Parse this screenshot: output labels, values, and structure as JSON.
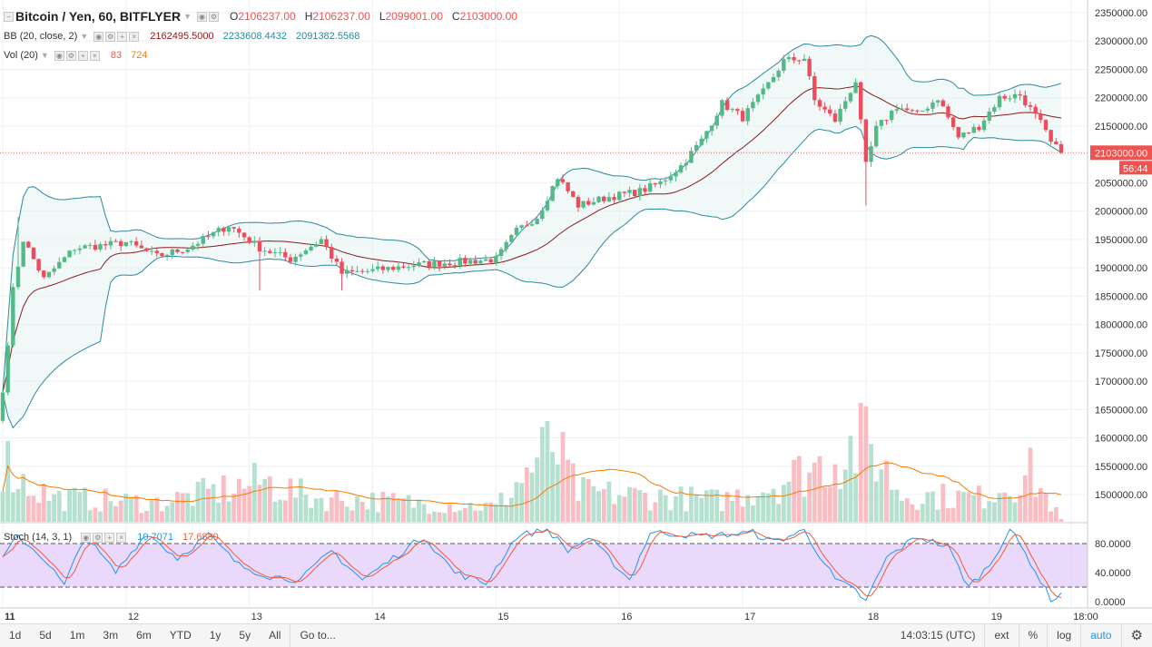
{
  "legend": {
    "symbol": "Bitcoin / Yen, 60, BITFLYER",
    "o_label": "O",
    "o_value": "2106237.00",
    "h_label": "H",
    "h_value": "2106237.00",
    "l_label": "L",
    "l_value": "2099001.00",
    "c_label": "C",
    "c_value": "2103000.00",
    "bb_label": "BB (20, close, 2)",
    "bb_basis": "2162495.5000",
    "bb_upper": "2233608.4432",
    "bb_lower": "2091382.5568",
    "vol_label": "Vol (20)",
    "vol_value": "83",
    "vol_ma": "724",
    "stoch_label": "Stoch (14, 3, 1)",
    "stoch_k": "10.7071",
    "stoch_d": "17.6880"
  },
  "toolbar": {
    "ranges": [
      "1d",
      "5d",
      "1m",
      "3m",
      "6m",
      "YTD",
      "1y",
      "5y",
      "All"
    ],
    "goto": "Go to...",
    "time": "14:03:15 (UTC)",
    "ext": "ext",
    "pct": "%",
    "log": "log",
    "auto": "auto"
  },
  "colors": {
    "up": "#26a69a",
    "down": "#ef5350",
    "bb_band": "#2b8a9e",
    "bb_basis": "#8b1a1a",
    "stoch_k": "#2196f3",
    "stoch_d": "#ef5b3a",
    "vol_ma": "#f57c00",
    "stoch_bg": "#e5d0fa"
  },
  "chart_data": {
    "type": "candlestick",
    "title": "Bitcoin / Yen, 60, BITFLYER",
    "price_axis": {
      "ticks": [
        2350000,
        2300000,
        2250000,
        2200000,
        2150000,
        2100000,
        2050000,
        2000000,
        1950000,
        1900000,
        1850000,
        1800000,
        1750000,
        1700000,
        1650000,
        1600000,
        1550000,
        1500000
      ],
      "labels": [
        "2350000.00",
        "2300000.00",
        "2250000.00",
        "2200000.00",
        "2150000.00",
        "2100000.00",
        "2050000.00",
        "2000000.00",
        "1950000.00",
        "1900000.00",
        "1850000.00",
        "1800000.00",
        "1750000.00",
        "1700000.00",
        "1650000.00",
        "1600000.00",
        "1550000.00",
        "1500000.00"
      ],
      "last_price": 2103000,
      "last_label": "2103000.00",
      "countdown": "56:44"
    },
    "stoch_axis": {
      "ticks": [
        80,
        40,
        0
      ],
      "labels": [
        "80.0000",
        "40.0000",
        "0.0000"
      ],
      "bands": [
        20,
        80
      ]
    },
    "time_axis": {
      "labels": [
        "11",
        "12",
        "13",
        "14",
        "15",
        "16",
        "17",
        "18",
        "19",
        "18:00"
      ],
      "positions_h": [
        0,
        24,
        48,
        72,
        96,
        120,
        144,
        168,
        192,
        208
      ]
    },
    "close_anchors": [
      [
        0,
        1680000
      ],
      [
        2,
        1860000
      ],
      [
        4,
        1950000
      ],
      [
        8,
        1880000
      ],
      [
        14,
        1935000
      ],
      [
        20,
        1940000
      ],
      [
        24,
        1945000
      ],
      [
        30,
        1920000
      ],
      [
        36,
        1935000
      ],
      [
        44,
        1975000
      ],
      [
        50,
        1935000
      ],
      [
        56,
        1915000
      ],
      [
        62,
        1950000
      ],
      [
        66,
        1890000
      ],
      [
        72,
        1895000
      ],
      [
        80,
        1905000
      ],
      [
        88,
        1910000
      ],
      [
        96,
        1915000
      ],
      [
        100,
        1965000
      ],
      [
        104,
        1990000
      ],
      [
        108,
        2060000
      ],
      [
        112,
        2010000
      ],
      [
        118,
        2025000
      ],
      [
        124,
        2035000
      ],
      [
        128,
        2050000
      ],
      [
        132,
        2080000
      ],
      [
        136,
        2125000
      ],
      [
        140,
        2190000
      ],
      [
        144,
        2165000
      ],
      [
        148,
        2210000
      ],
      [
        152,
        2265000
      ],
      [
        156,
        2270000
      ],
      [
        158,
        2195000
      ],
      [
        162,
        2160000
      ],
      [
        166,
        2230000
      ],
      [
        168,
        2080000
      ],
      [
        170,
        2145000
      ],
      [
        174,
        2185000
      ],
      [
        178,
        2170000
      ],
      [
        182,
        2200000
      ],
      [
        186,
        2130000
      ],
      [
        190,
        2150000
      ],
      [
        194,
        2200000
      ],
      [
        198,
        2205000
      ],
      [
        202,
        2155000
      ],
      [
        204,
        2120000
      ],
      [
        206,
        2103000
      ]
    ],
    "volume_anchors": [
      [
        0,
        2400
      ],
      [
        4,
        1500
      ],
      [
        10,
        900
      ],
      [
        30,
        700
      ],
      [
        51,
        1500
      ],
      [
        60,
        900
      ],
      [
        96,
        550
      ],
      [
        107,
        2900
      ],
      [
        112,
        1100
      ],
      [
        140,
        800
      ],
      [
        150,
        1400
      ],
      [
        160,
        2200
      ],
      [
        168,
        3000
      ],
      [
        175,
        1000
      ],
      [
        190,
        900
      ],
      [
        200,
        1800
      ],
      [
        206,
        83
      ]
    ],
    "stoch_k_anchors": [
      [
        0,
        60
      ],
      [
        3,
        90
      ],
      [
        8,
        60
      ],
      [
        12,
        22
      ],
      [
        16,
        90
      ],
      [
        22,
        40
      ],
      [
        28,
        95
      ],
      [
        34,
        60
      ],
      [
        40,
        92
      ],
      [
        46,
        50
      ],
      [
        52,
        35
      ],
      [
        58,
        30
      ],
      [
        64,
        70
      ],
      [
        70,
        30
      ],
      [
        76,
        60
      ],
      [
        82,
        90
      ],
      [
        88,
        40
      ],
      [
        94,
        25
      ],
      [
        100,
        90
      ],
      [
        106,
        100
      ],
      [
        110,
        70
      ],
      [
        114,
        88
      ],
      [
        118,
        60
      ],
      [
        122,
        30
      ],
      [
        126,
        95
      ],
      [
        130,
        94
      ],
      [
        136,
        90
      ],
      [
        140,
        92
      ],
      [
        146,
        95
      ],
      [
        150,
        82
      ],
      [
        156,
        98
      ],
      [
        162,
        30
      ],
      [
        166,
        15
      ],
      [
        168,
        0
      ],
      [
        172,
        60
      ],
      [
        178,
        90
      ],
      [
        184,
        75
      ],
      [
        188,
        20
      ],
      [
        192,
        50
      ],
      [
        196,
        100
      ],
      [
        200,
        55
      ],
      [
        204,
        2
      ],
      [
        206,
        10.7071
      ]
    ],
    "note": "OHLC not printed on the chart; values read off the price axis"
  }
}
